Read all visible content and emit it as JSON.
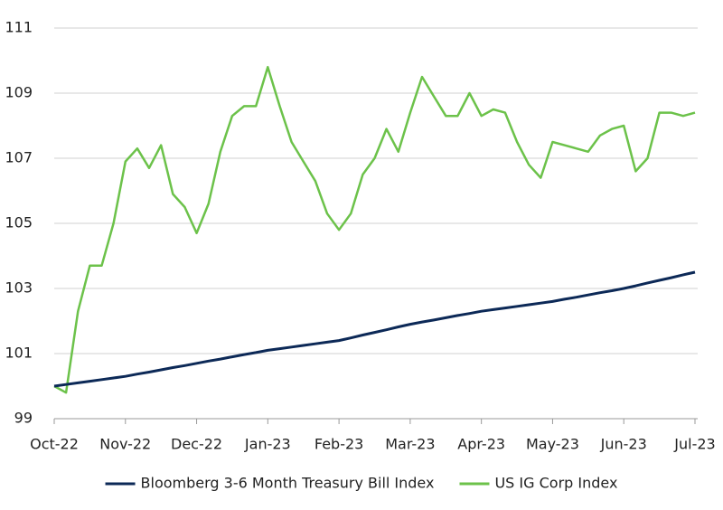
{
  "chart_data": {
    "type": "line",
    "categories": [
      "Oct-22",
      null,
      null,
      null,
      null,
      null,
      "Nov-22",
      null,
      null,
      null,
      null,
      null,
      "Dec-22",
      null,
      null,
      null,
      null,
      null,
      "Jan-23",
      null,
      null,
      null,
      null,
      null,
      "Feb-23",
      null,
      null,
      null,
      null,
      null,
      "Mar-23",
      null,
      null,
      null,
      null,
      null,
      "Apr-23",
      null,
      null,
      null,
      null,
      null,
      "May-23",
      null,
      null,
      null,
      null,
      null,
      "Jun-23",
      null,
      null,
      null,
      null,
      null,
      "Jul-23"
    ],
    "series": [
      {
        "name": "Bloomberg 3-6 Month Treasury Bill Index",
        "color": "#0c2957",
        "values": [
          100.0,
          100.05,
          100.1,
          100.15,
          100.2,
          100.25,
          100.3,
          100.37,
          100.43,
          100.5,
          100.57,
          100.63,
          100.7,
          100.77,
          100.83,
          100.9,
          100.97,
          101.03,
          101.1,
          101.15,
          101.2,
          101.25,
          101.3,
          101.35,
          101.4,
          101.48,
          101.57,
          101.65,
          101.73,
          101.82,
          101.9,
          101.97,
          102.03,
          102.1,
          102.17,
          102.23,
          102.3,
          102.35,
          102.4,
          102.45,
          102.5,
          102.55,
          102.6,
          102.67,
          102.73,
          102.8,
          102.87,
          102.93,
          103.0,
          103.08,
          103.17,
          103.25,
          103.33,
          103.42,
          103.5
        ]
      },
      {
        "name": "US IG Corp Index",
        "color": "#6cc24a",
        "values": [
          100.0,
          99.8,
          102.3,
          103.7,
          103.7,
          105.0,
          106.9,
          107.3,
          106.7,
          107.4,
          105.9,
          105.5,
          104.7,
          105.6,
          107.2,
          108.3,
          108.6,
          108.6,
          109.8,
          108.6,
          107.5,
          106.9,
          106.3,
          105.3,
          104.8,
          105.3,
          106.5,
          107.0,
          107.9,
          107.2,
          108.4,
          109.5,
          108.9,
          108.3,
          108.3,
          109.0,
          108.3,
          108.5,
          108.4,
          107.5,
          106.8,
          106.4,
          107.5,
          107.4,
          107.3,
          107.2,
          107.7,
          107.9,
          108.0,
          106.6,
          107.0,
          108.4,
          108.4,
          108.3,
          108.4
        ]
      }
    ],
    "ylim": [
      99,
      111
    ],
    "yticks": [
      99,
      101,
      103,
      105,
      107,
      109,
      111
    ],
    "grid": true,
    "legend": "bottom"
  }
}
